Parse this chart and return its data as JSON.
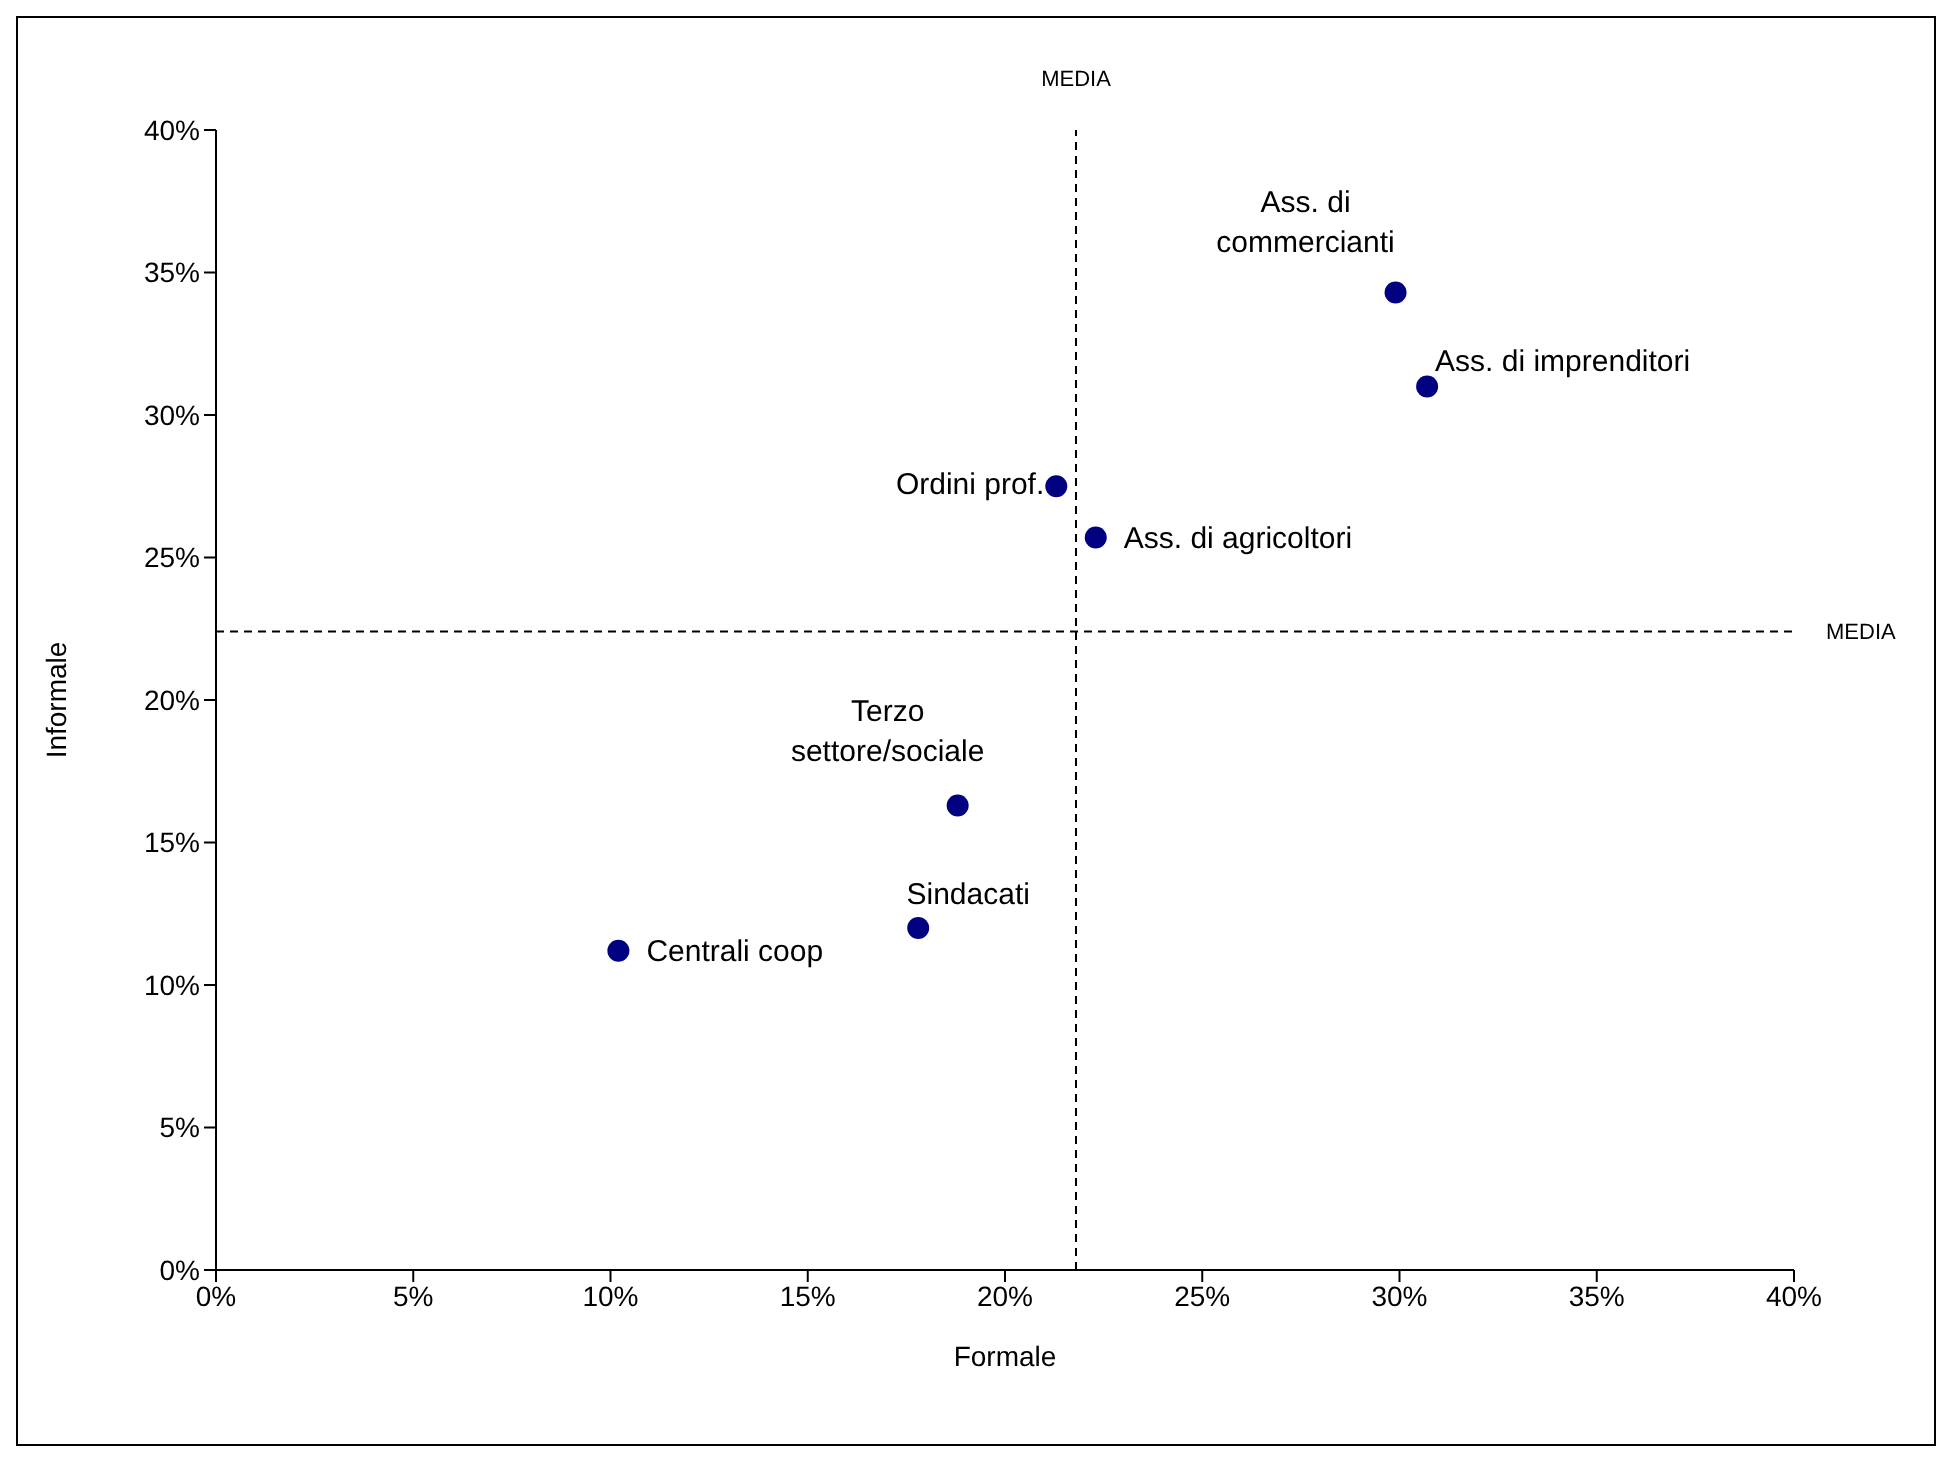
{
  "chart_data": {
    "type": "scatter",
    "xlabel": "Formale",
    "ylabel": "Informale",
    "xlim": [
      0,
      40
    ],
    "ylim": [
      0,
      40
    ],
    "xticks": [
      {
        "value": 0,
        "label": "0%"
      },
      {
        "value": 5,
        "label": "5%"
      },
      {
        "value": 10,
        "label": "10%"
      },
      {
        "value": 15,
        "label": "15%"
      },
      {
        "value": 20,
        "label": "20%"
      },
      {
        "value": 25,
        "label": "25%"
      },
      {
        "value": 30,
        "label": "30%"
      },
      {
        "value": 35,
        "label": "35%"
      },
      {
        "value": 40,
        "label": "40%"
      }
    ],
    "yticks": [
      {
        "value": 0,
        "label": "0%"
      },
      {
        "value": 5,
        "label": "5%"
      },
      {
        "value": 10,
        "label": "10%"
      },
      {
        "value": 15,
        "label": "15%"
      },
      {
        "value": 20,
        "label": "20%"
      },
      {
        "value": 25,
        "label": "25%"
      },
      {
        "value": 30,
        "label": "30%"
      },
      {
        "value": 35,
        "label": "35%"
      },
      {
        "value": 40,
        "label": "40%"
      }
    ],
    "series": [
      {
        "color": "#000080",
        "x": [
          29.9,
          30.7,
          21.3,
          22.3,
          18.8,
          17.8,
          10.2
        ],
        "values": [
          34.3,
          31.0,
          27.5,
          25.7,
          16.3,
          12.0,
          11.2
        ]
      }
    ],
    "marker": "circle",
    "grid": false,
    "legend": false,
    "ref_lines": [
      {
        "axis": "x",
        "value": 21.8,
        "label": "MEDIA",
        "line_style": "dashed",
        "color": "#000000"
      },
      {
        "axis": "y",
        "value": 22.4,
        "label": "MEDIA",
        "line_style": "dashed",
        "color": "#000000"
      }
    ],
    "annotations": [
      {
        "text": "Ass. di commercianti",
        "x": 29.9,
        "y": 34.3
      },
      {
        "text": "Ass. di imprenditori",
        "x": 30.7,
        "y": 31.0
      },
      {
        "text": "Ordini prof.",
        "x": 21.3,
        "y": 27.5
      },
      {
        "text": "Ass. di agricoltori",
        "x": 22.3,
        "y": 25.7
      },
      {
        "text": "Terzo settore/sociale",
        "x": 18.8,
        "y": 16.3
      },
      {
        "text": "Sindacati",
        "x": 17.8,
        "y": 12.0
      },
      {
        "text": "Centrali coop",
        "x": 10.2,
        "y": 11.2
      }
    ]
  }
}
